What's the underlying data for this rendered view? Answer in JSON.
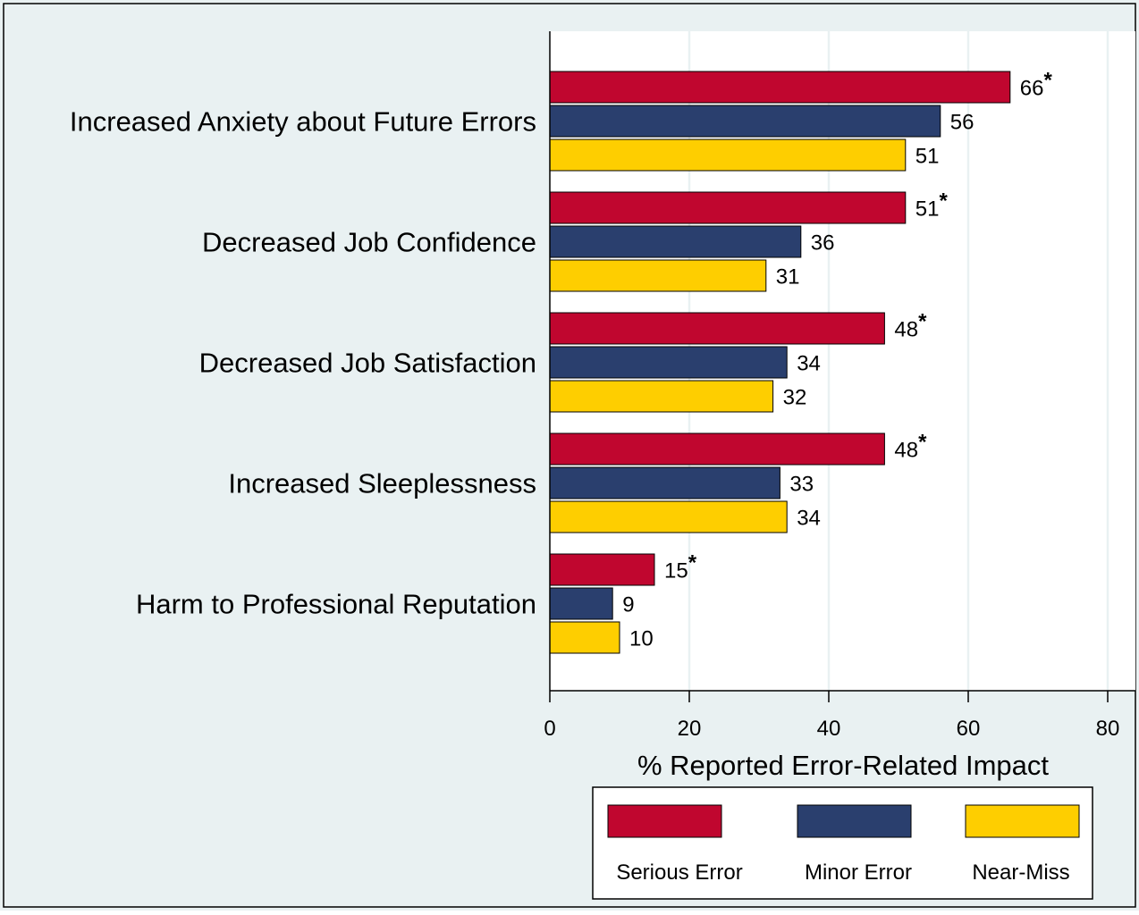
{
  "chart_data": {
    "type": "bar",
    "orientation": "horizontal",
    "categories": [
      "Increased Anxiety about Future Errors",
      "Decreased Job Confidence",
      "Decreased Job Satisfaction",
      "Increased Sleeplessness",
      "Harm to Professional Reputation"
    ],
    "series": [
      {
        "name": "Serious Error",
        "color": "#c0062f",
        "values": [
          66,
          51,
          48,
          48,
          15
        ],
        "labels": [
          "66",
          "51",
          "48",
          "48",
          "15"
        ],
        "marker": "*"
      },
      {
        "name": "Minor Error",
        "color": "#2a3f6e",
        "values": [
          56,
          36,
          34,
          33,
          9
        ],
        "labels": [
          "56",
          "36",
          "34",
          "33",
          "9"
        ],
        "marker": ""
      },
      {
        "name": "Near-Miss",
        "color": "#fece00",
        "values": [
          51,
          31,
          32,
          34,
          10
        ],
        "labels": [
          "51",
          "31",
          "32",
          "34",
          "10"
        ],
        "marker": ""
      }
    ],
    "xlabel": "% Reported Error-Related Impact",
    "xlim": [
      0,
      80
    ],
    "xticks": [
      0,
      20,
      40,
      60,
      80
    ],
    "xtick_labels": [
      "0",
      "20",
      "40",
      "60",
      "80"
    ],
    "grid": "vertical",
    "legend_position": "bottom",
    "background_color": "#e9f1f2",
    "plot_background_color": "#ffffff",
    "gridline_color": "#e9f1f2"
  }
}
